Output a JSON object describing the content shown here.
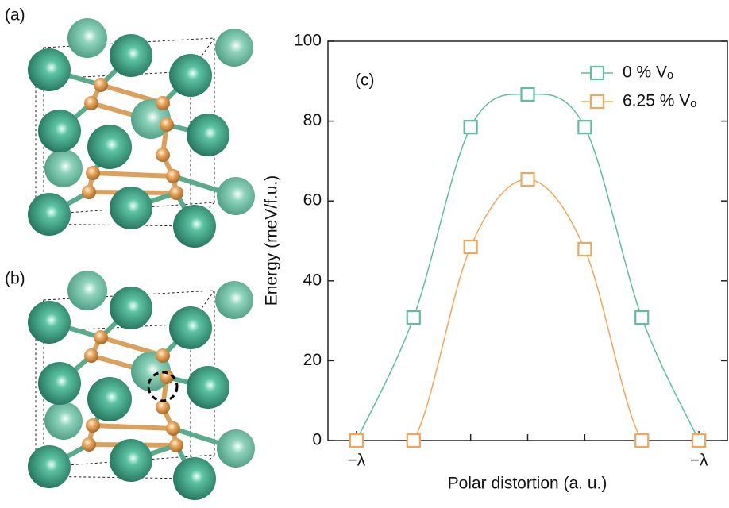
{
  "panel_labels": [
    "(a)",
    "(b)"
  ],
  "chart_data": {
    "type": "line",
    "annotation": "(c)",
    "x_label": "Polar distortion (a. u.)",
    "y_label": "Energy (meV/f.u.)",
    "x": [
      -3,
      -2,
      -1,
      0,
      1,
      2,
      3
    ],
    "xlim": [
      -3.5,
      3.5
    ],
    "xticks": [
      {
        "value": -3,
        "label": "−λ"
      },
      {
        "value": 3,
        "label": "−λ"
      }
    ],
    "x_minor_ticks": [
      -3,
      -2,
      -1,
      0,
      1,
      2,
      3
    ],
    "ylim": [
      0,
      100
    ],
    "yticks": [
      0,
      20,
      40,
      60,
      80,
      100
    ],
    "legend": "upper right",
    "marker": "square",
    "series": [
      {
        "name": "0 % Vₒ",
        "color": "#5cbf9e",
        "values": [
          0,
          30.8,
          78.5,
          86.7,
          78.5,
          30.8,
          0
        ]
      },
      {
        "name": "6.25 % Vₒ",
        "color": "#f2a65a",
        "values": [
          0,
          0,
          48.5,
          65.4,
          47.9,
          0,
          0
        ]
      }
    ]
  }
}
